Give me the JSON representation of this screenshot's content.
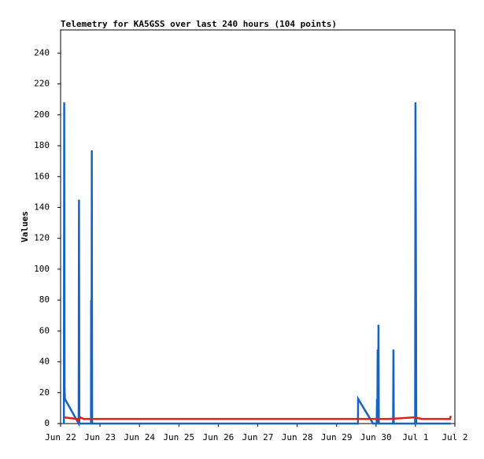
{
  "chart_data": {
    "type": "line",
    "title": "Telemetry for KA5GSS over last 240 hours (104 points)",
    "y_label": "Values",
    "xlim": [
      0,
      240
    ],
    "xticks": [
      {
        "value": 0,
        "label": "Jun 22"
      },
      {
        "value": 24,
        "label": "Jun 23"
      },
      {
        "value": 48,
        "label": "Jun 24"
      },
      {
        "value": 72,
        "label": "Jun 25"
      },
      {
        "value": 96,
        "label": "Jun 26"
      },
      {
        "value": 120,
        "label": "Jun 27"
      },
      {
        "value": 144,
        "label": "Jun 28"
      },
      {
        "value": 168,
        "label": "Jun 29"
      },
      {
        "value": 192,
        "label": "Jun 30"
      },
      {
        "value": 216,
        "label": "Jul 1"
      },
      {
        "value": 240,
        "label": "Jul 2"
      }
    ],
    "ylim": [
      0,
      255
    ],
    "yticks": [
      0,
      20,
      40,
      60,
      80,
      100,
      120,
      140,
      160,
      180,
      200,
      220,
      240
    ],
    "series": [
      {
        "color": "#1565c0",
        "x": [
          2.0,
          2.2,
          2.4,
          2.6,
          11.0,
          11.2,
          11.4,
          18.5,
          18.6,
          18.8,
          19.0,
          19.2,
          181.0,
          181.1,
          190.2,
          192.4,
          192.6,
          192.8,
          193.0,
          193.3,
          193.5,
          193.7,
          202.4,
          202.6,
          202.8,
          215.8,
          216.0,
          216.3,
          216.5,
          237.5
        ],
        "values": [
          0,
          208,
          24,
          16,
          0,
          145,
          0,
          0,
          80,
          0,
          177,
          0,
          0,
          16,
          0,
          0,
          16,
          0,
          48,
          0,
          64,
          0,
          0,
          48,
          0,
          0,
          208,
          104,
          0,
          0
        ]
      },
      {
        "color": "#e0201a",
        "x": [
          2,
          6,
          10,
          11,
          12,
          14,
          180,
          200,
          208,
          215,
          220,
          237,
          237.5
        ],
        "values": [
          4,
          3.5,
          3,
          2,
          4,
          3,
          3,
          3,
          3.5,
          4,
          3,
          3,
          5
        ]
      }
    ]
  }
}
